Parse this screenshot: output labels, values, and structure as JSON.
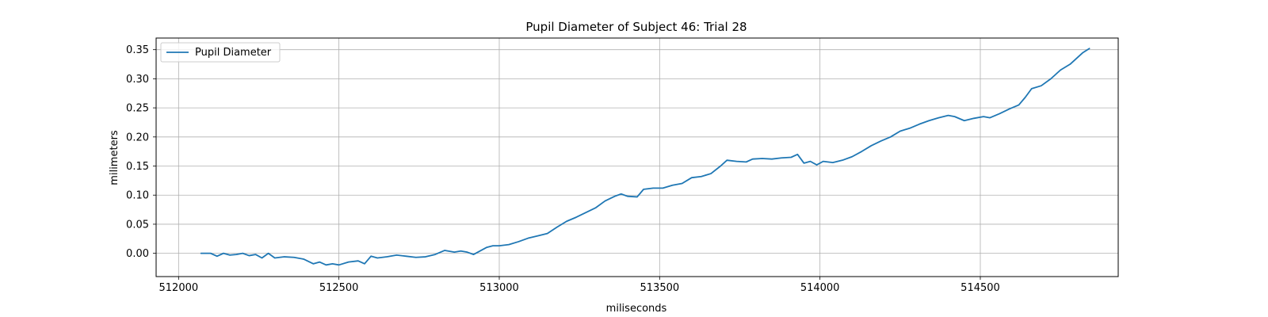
{
  "chart_data": {
    "type": "line",
    "title": "Pupil Diameter of Subject 46: Trial 28",
    "xlabel": "miliseconds",
    "ylabel": "milimeters",
    "xlim": [
      511930,
      514930
    ],
    "ylim": [
      -0.04,
      0.37
    ],
    "xticks": [
      512000,
      512500,
      513000,
      513500,
      514000,
      514500
    ],
    "yticks": [
      0.0,
      0.05,
      0.1,
      0.15,
      0.2,
      0.25,
      0.3,
      0.35
    ],
    "ytick_labels": [
      "0.00",
      "0.05",
      "0.10",
      "0.15",
      "0.20",
      "0.25",
      "0.30",
      "0.35"
    ],
    "grid": true,
    "legend": {
      "position": "top-left",
      "entries": [
        "Pupil Diameter"
      ]
    },
    "series": [
      {
        "name": "Pupil Diameter",
        "color": "#1f77b4",
        "points": [
          [
            512070,
            0.0
          ],
          [
            512100,
            0.0
          ],
          [
            512120,
            -0.005
          ],
          [
            512140,
            0.0
          ],
          [
            512160,
            -0.003
          ],
          [
            512180,
            -0.002
          ],
          [
            512200,
            0.0
          ],
          [
            512220,
            -0.004
          ],
          [
            512240,
            -0.002
          ],
          [
            512260,
            -0.008
          ],
          [
            512280,
            0.0
          ],
          [
            512300,
            -0.008
          ],
          [
            512330,
            -0.006
          ],
          [
            512360,
            -0.007
          ],
          [
            512390,
            -0.01
          ],
          [
            512420,
            -0.018
          ],
          [
            512440,
            -0.015
          ],
          [
            512460,
            -0.02
          ],
          [
            512480,
            -0.018
          ],
          [
            512500,
            -0.02
          ],
          [
            512530,
            -0.015
          ],
          [
            512560,
            -0.013
          ],
          [
            512580,
            -0.018
          ],
          [
            512600,
            -0.005
          ],
          [
            512620,
            -0.008
          ],
          [
            512650,
            -0.006
          ],
          [
            512680,
            -0.003
          ],
          [
            512710,
            -0.005
          ],
          [
            512740,
            -0.007
          ],
          [
            512770,
            -0.006
          ],
          [
            512800,
            -0.002
          ],
          [
            512830,
            0.005
          ],
          [
            512860,
            0.002
          ],
          [
            512880,
            0.004
          ],
          [
            512900,
            0.002
          ],
          [
            512920,
            -0.002
          ],
          [
            512940,
            0.004
          ],
          [
            512960,
            0.01
          ],
          [
            512980,
            0.013
          ],
          [
            513000,
            0.013
          ],
          [
            513030,
            0.015
          ],
          [
            513060,
            0.02
          ],
          [
            513090,
            0.026
          ],
          [
            513120,
            0.03
          ],
          [
            513150,
            0.034
          ],
          [
            513180,
            0.045
          ],
          [
            513210,
            0.055
          ],
          [
            513240,
            0.062
          ],
          [
            513270,
            0.07
          ],
          [
            513300,
            0.078
          ],
          [
            513330,
            0.09
          ],
          [
            513360,
            0.098
          ],
          [
            513380,
            0.102
          ],
          [
            513400,
            0.098
          ],
          [
            513430,
            0.097
          ],
          [
            513450,
            0.11
          ],
          [
            513480,
            0.112
          ],
          [
            513510,
            0.112
          ],
          [
            513540,
            0.117
          ],
          [
            513570,
            0.12
          ],
          [
            513600,
            0.13
          ],
          [
            513630,
            0.132
          ],
          [
            513660,
            0.137
          ],
          [
            513690,
            0.15
          ],
          [
            513710,
            0.16
          ],
          [
            513740,
            0.158
          ],
          [
            513770,
            0.157
          ],
          [
            513790,
            0.162
          ],
          [
            513820,
            0.163
          ],
          [
            513850,
            0.162
          ],
          [
            513880,
            0.164
          ],
          [
            513910,
            0.165
          ],
          [
            513930,
            0.17
          ],
          [
            513950,
            0.155
          ],
          [
            513970,
            0.158
          ],
          [
            513990,
            0.152
          ],
          [
            514010,
            0.158
          ],
          [
            514040,
            0.156
          ],
          [
            514070,
            0.16
          ],
          [
            514100,
            0.166
          ],
          [
            514130,
            0.175
          ],
          [
            514160,
            0.185
          ],
          [
            514190,
            0.193
          ],
          [
            514220,
            0.2
          ],
          [
            514250,
            0.21
          ],
          [
            514280,
            0.215
          ],
          [
            514310,
            0.222
          ],
          [
            514340,
            0.228
          ],
          [
            514370,
            0.233
          ],
          [
            514400,
            0.237
          ],
          [
            514420,
            0.235
          ],
          [
            514450,
            0.228
          ],
          [
            514480,
            0.232
          ],
          [
            514510,
            0.235
          ],
          [
            514530,
            0.233
          ],
          [
            514560,
            0.24
          ],
          [
            514590,
            0.248
          ],
          [
            514620,
            0.255
          ],
          [
            514640,
            0.268
          ],
          [
            514660,
            0.283
          ],
          [
            514690,
            0.288
          ],
          [
            514720,
            0.3
          ],
          [
            514750,
            0.315
          ],
          [
            514780,
            0.325
          ],
          [
            514800,
            0.335
          ],
          [
            514820,
            0.345
          ],
          [
            514840,
            0.352
          ]
        ]
      }
    ]
  }
}
